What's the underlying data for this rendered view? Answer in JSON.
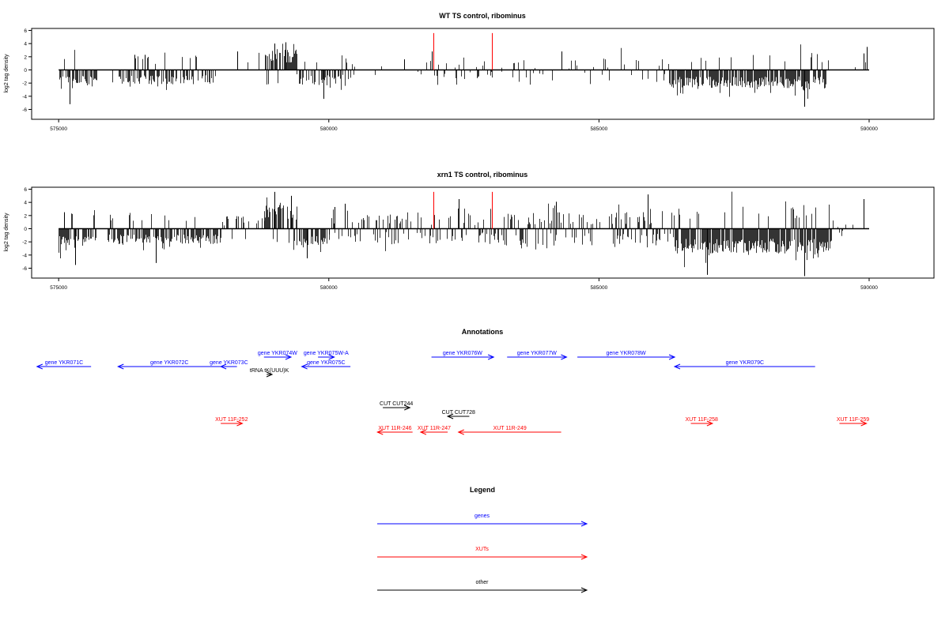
{
  "chart_data": [
    {
      "type": "bar",
      "title": "WT TS control, ribominus",
      "ylabel": "log2 tag density",
      "xlim": [
        574500,
        591200
      ],
      "ylim": [
        -7.5,
        6.3
      ],
      "x_ticks": [
        575000,
        580000,
        585000,
        590000
      ],
      "x_tick_labels": [
        "575000",
        "580000",
        "585000",
        "590000"
      ],
      "y_ticks": [
        6,
        4,
        2,
        0,
        -2,
        -4,
        -6
      ],
      "y_tick_labels": [
        "6",
        "4",
        "2",
        "0",
        "-2",
        "-4",
        "-6"
      ],
      "baseline": {
        "x": [
          575000,
          590000
        ],
        "y": 0
      },
      "highlight_color": "#ff0000",
      "highlights": [
        {
          "x": 581930,
          "y": 5.6
        },
        {
          "x": 583020,
          "y": 5.6
        }
      ],
      "segments": [
        {
          "x0": 575000,
          "x1": 575700,
          "mean": -1.8,
          "amp": 1.6,
          "density": 0.7,
          "sign": -1
        },
        {
          "x0": 576000,
          "x1": 577900,
          "mean": -1.6,
          "amp": 1.4,
          "density": 0.6,
          "sign": -1
        },
        {
          "x0": 578300,
          "x1": 578800,
          "mean": 0.8,
          "amp": 1.6,
          "density": 0.1,
          "sign": 1
        },
        {
          "x0": 578800,
          "x1": 579400,
          "mean": 2.2,
          "amp": 2.0,
          "density": 0.75,
          "sign": 1
        },
        {
          "x0": 579400,
          "x1": 580400,
          "mean": -1.3,
          "amp": 1.8,
          "density": 0.5,
          "sign": -1
        },
        {
          "x0": 580400,
          "x1": 581800,
          "mean": 0.0,
          "amp": 0.9,
          "density": 0.06,
          "sign": 0
        },
        {
          "x0": 581800,
          "x1": 583200,
          "mean": 0.5,
          "amp": 1.5,
          "density": 0.3,
          "sign": 0
        },
        {
          "x0": 583200,
          "x1": 586300,
          "mean": 0.4,
          "amp": 1.8,
          "density": 0.2,
          "sign": 0
        },
        {
          "x0": 586300,
          "x1": 589200,
          "mean": -2.0,
          "amp": 1.8,
          "density": 0.85,
          "sign": -1
        },
        {
          "x0": 589200,
          "x1": 590000,
          "mean": 0.4,
          "amp": 1.2,
          "density": 0.06,
          "sign": 1
        }
      ],
      "peaks": [
        {
          "x": 575200,
          "y": -5.2
        },
        {
          "x": 576400,
          "y": 2.3
        },
        {
          "x": 576600,
          "y": 2.3
        },
        {
          "x": 578300,
          "y": 2.8
        },
        {
          "x": 579200,
          "y": 4.2
        },
        {
          "x": 579000,
          "y": 4.0
        },
        {
          "x": 579900,
          "y": -4.4
        },
        {
          "x": 581400,
          "y": 1.6
        },
        {
          "x": 581900,
          "y": 2.8
        },
        {
          "x": 584300,
          "y": 2.8
        },
        {
          "x": 588800,
          "y": -5.6
        },
        {
          "x": 589950,
          "y": 3.5
        },
        {
          "x": 589900,
          "y": 2.5
        }
      ]
    },
    {
      "type": "bar",
      "title": "xrn1 TS control, ribominus",
      "ylabel": "log2 tag density",
      "xlim": [
        574500,
        591200
      ],
      "ylim": [
        -7.5,
        6.3
      ],
      "x_ticks": [
        575000,
        580000,
        585000,
        590000
      ],
      "x_tick_labels": [
        "575000",
        "580000",
        "585000",
        "590000"
      ],
      "y_ticks": [
        6,
        4,
        2,
        0,
        -2,
        -4,
        -6
      ],
      "y_tick_labels": [
        "6",
        "4",
        "2",
        "0",
        "-2",
        "-4",
        "-6"
      ],
      "baseline": {
        "x": [
          575000,
          590000
        ],
        "y": 0
      },
      "highlight_color": "#ff0000",
      "highlights": [
        {
          "x": 581930,
          "y": 5.6
        },
        {
          "x": 583020,
          "y": 5.6
        }
      ],
      "segments": [
        {
          "x0": 575000,
          "x1": 575700,
          "mean": -2.2,
          "amp": 1.8,
          "density": 0.85,
          "sign": -1
        },
        {
          "x0": 575900,
          "x1": 578000,
          "mean": -1.8,
          "amp": 1.5,
          "density": 0.75,
          "sign": -1
        },
        {
          "x0": 578000,
          "x1": 578800,
          "mean": 0.9,
          "amp": 1.5,
          "density": 0.3,
          "sign": 1
        },
        {
          "x0": 578800,
          "x1": 579400,
          "mean": 2.5,
          "amp": 2.3,
          "density": 0.85,
          "sign": 1
        },
        {
          "x0": 579400,
          "x1": 580000,
          "mean": -1.6,
          "amp": 1.8,
          "density": 0.6,
          "sign": -1
        },
        {
          "x0": 580000,
          "x1": 581000,
          "mean": 1.2,
          "amp": 1.6,
          "density": 0.4,
          "sign": 0
        },
        {
          "x0": 581000,
          "x1": 583200,
          "mean": 1.0,
          "amp": 2.0,
          "density": 0.5,
          "sign": 0
        },
        {
          "x0": 583200,
          "x1": 586400,
          "mean": 1.3,
          "amp": 2.2,
          "density": 0.55,
          "sign": 0
        },
        {
          "x0": 586400,
          "x1": 589300,
          "mean": -3.0,
          "amp": 2.3,
          "density": 0.95,
          "sign": -1
        },
        {
          "x0": 589300,
          "x1": 590000,
          "mean": 0.5,
          "amp": 1.5,
          "density": 0.1,
          "sign": 1
        }
      ],
      "peaks": [
        {
          "x": 575100,
          "y": 2.5
        },
        {
          "x": 575300,
          "y": -5.5
        },
        {
          "x": 576800,
          "y": -5.2
        },
        {
          "x": 579000,
          "y": 5.6
        },
        {
          "x": 579300,
          "y": 5.0
        },
        {
          "x": 579600,
          "y": -4.5
        },
        {
          "x": 580100,
          "y": 3.3
        },
        {
          "x": 580300,
          "y": 3.8
        },
        {
          "x": 582400,
          "y": 4.5
        },
        {
          "x": 584200,
          "y": 4.1
        },
        {
          "x": 585900,
          "y": 5.2
        },
        {
          "x": 587000,
          "y": -7.0
        },
        {
          "x": 588800,
          "y": -7.2
        },
        {
          "x": 589900,
          "y": 4.5
        }
      ]
    }
  ],
  "annotations": {
    "title": "Annotations",
    "xlim": [
      574500,
      591200
    ],
    "items": [
      {
        "label": "gene YKR071C",
        "color": "#0000ff",
        "x0": 575600,
        "x1": 574600,
        "row": 0
      },
      {
        "label": "gene YKR072C",
        "color": "#0000ff",
        "x0": 578000,
        "x1": 576100,
        "row": 0
      },
      {
        "label": "gene YKR073C",
        "color": "#0000ff",
        "x0": 578300,
        "x1": 578000,
        "row": 0
      },
      {
        "label": "gene YKR074W",
        "color": "#0000ff",
        "x0": 578800,
        "x1": 579300,
        "row": -1
      },
      {
        "label": "gene YKR075W-A",
        "color": "#0000ff",
        "x0": 579800,
        "x1": 580100,
        "row": -1
      },
      {
        "label": "gene YKR075C",
        "color": "#0000ff",
        "x0": 580400,
        "x1": 579500,
        "row": 0
      },
      {
        "label": "gene YKR076W",
        "color": "#0000ff",
        "x0": 581900,
        "x1": 583050,
        "row": -1
      },
      {
        "label": "gene YKR077W",
        "color": "#0000ff",
        "x0": 583300,
        "x1": 584400,
        "row": -1
      },
      {
        "label": "gene YKR078W",
        "color": "#0000ff",
        "x0": 584600,
        "x1": 586400,
        "row": -1
      },
      {
        "label": "gene YKR079C",
        "color": "#0000ff",
        "x0": 589000,
        "x1": 586400,
        "row": 0
      },
      {
        "label": "tRNA tK(UUU)K",
        "color": "#000000",
        "x0": 578850,
        "x1": 578950,
        "row": 1
      },
      {
        "label": "CUT CUT244",
        "color": "#000000",
        "x0": 581000,
        "x1": 581500,
        "row": 3
      },
      {
        "label": "CUT CUT728",
        "color": "#000000",
        "x0": 582600,
        "x1": 582200,
        "row": 4
      },
      {
        "label": "XUT 11F-252",
        "color": "#ff0000",
        "x0": 578000,
        "x1": 578400,
        "row": 5
      },
      {
        "label": "XUT 11R-246",
        "color": "#ff0000",
        "x0": 581550,
        "x1": 580900,
        "row": 6
      },
      {
        "label": "XUT 11R-247",
        "color": "#ff0000",
        "x0": 582200,
        "x1": 581700,
        "row": 6
      },
      {
        "label": "XUT 11R-249",
        "color": "#ff0000",
        "x0": 584300,
        "x1": 582400,
        "row": 6
      },
      {
        "label": "XUT 11F-258",
        "color": "#ff0000",
        "x0": 586700,
        "x1": 587100,
        "row": 5
      },
      {
        "label": "XUT 11F-259",
        "color": "#ff0000",
        "x0": 589450,
        "x1": 589950,
        "row": 5
      }
    ]
  },
  "legend": {
    "title": "Legend",
    "items": [
      {
        "label": "genes",
        "color": "#0000ff"
      },
      {
        "label": "XUTs",
        "color": "#ff0000"
      },
      {
        "label": "other",
        "color": "#000000"
      }
    ]
  }
}
